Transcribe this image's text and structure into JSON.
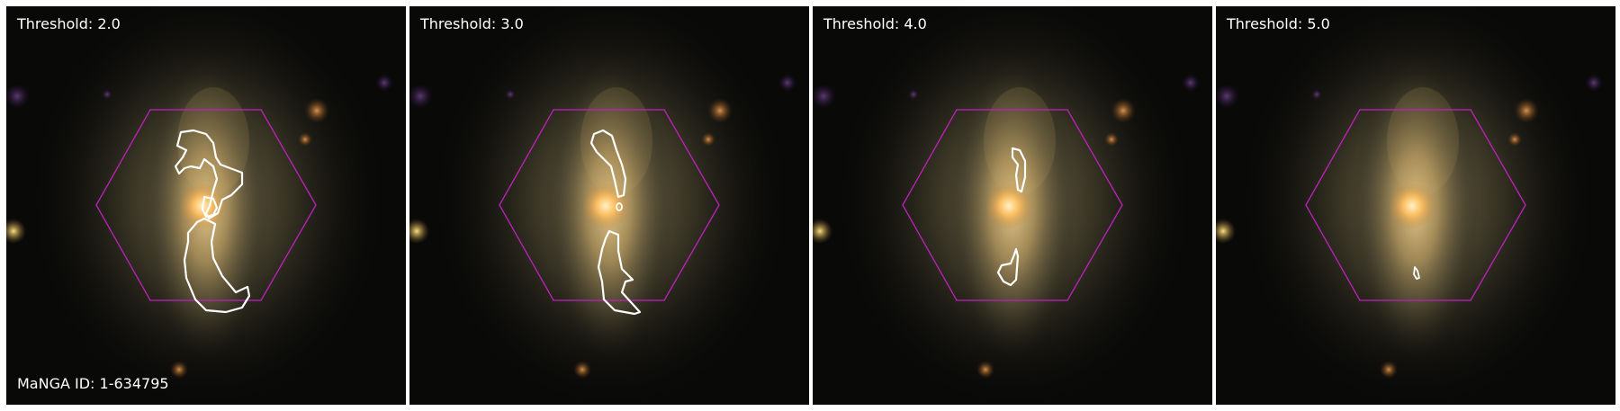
{
  "figure": {
    "manga_id": "MaNGA ID: 1-634795",
    "panels": [
      {
        "threshold_label": "Threshold: 2.0"
      },
      {
        "threshold_label": "Threshold: 3.0"
      },
      {
        "threshold_label": "Threshold: 4.0"
      },
      {
        "threshold_label": "Threshold: 5.0"
      }
    ]
  },
  "colors": {
    "hexagon": "#c020c0",
    "contour": "#ffffff",
    "background": "#000000",
    "galaxy_core": "#ffd080"
  }
}
